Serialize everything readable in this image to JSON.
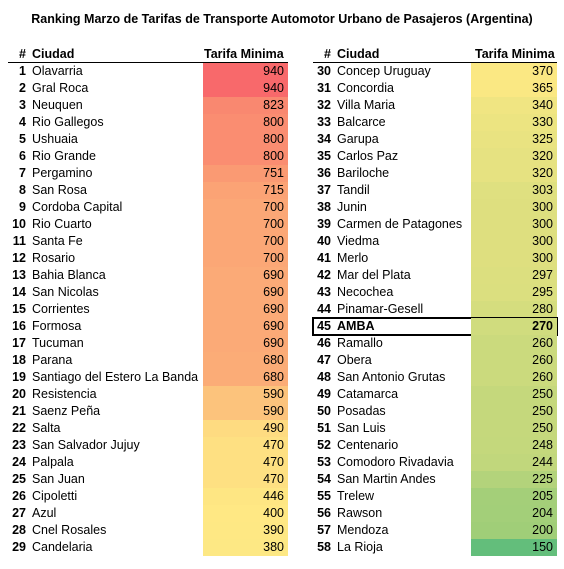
{
  "title": "Ranking Marzo de Tarifas de Transporte Automotor Urbano de Pasajeros (Argentina)",
  "headers": {
    "num": "#",
    "city": "Ciudad",
    "fare": "Tarifa Minima"
  },
  "left_rows": [
    {
      "n": "1",
      "city": "Olavarria",
      "fare": "940",
      "color": "#f8696b"
    },
    {
      "n": "2",
      "city": "Gral Roca",
      "fare": "940",
      "color": "#f8696b"
    },
    {
      "n": "3",
      "city": "Neuquen",
      "fare": "823",
      "color": "#f98870"
    },
    {
      "n": "4",
      "city": "Rio Gallegos",
      "fare": "800",
      "color": "#fa8d71"
    },
    {
      "n": "5",
      "city": "Ushuaia",
      "fare": "800",
      "color": "#fa8d71"
    },
    {
      "n": "6",
      "city": "Rio Grande",
      "fare": "800",
      "color": "#fa8d71"
    },
    {
      "n": "7",
      "city": "Pergamino",
      "fare": "751",
      "color": "#fa9a73"
    },
    {
      "n": "8",
      "city": "San Rosa",
      "fare": "715",
      "color": "#fba375"
    },
    {
      "n": "9",
      "city": "Cordoba Capital",
      "fare": "700",
      "color": "#fba776"
    },
    {
      "n": "10",
      "city": "Rio Cuarto",
      "fare": "700",
      "color": "#fba776"
    },
    {
      "n": "11",
      "city": "Santa Fe",
      "fare": "700",
      "color": "#fba776"
    },
    {
      "n": "12",
      "city": "Rosario",
      "fare": "700",
      "color": "#fba776"
    },
    {
      "n": "13",
      "city": "Bahia Blanca",
      "fare": "690",
      "color": "#fbaa77"
    },
    {
      "n": "14",
      "city": "San Nicolas",
      "fare": "690",
      "color": "#fbaa77"
    },
    {
      "n": "15",
      "city": "Corrientes",
      "fare": "690",
      "color": "#fbaa77"
    },
    {
      "n": "16",
      "city": "Formosa",
      "fare": "690",
      "color": "#fbaa77"
    },
    {
      "n": "17",
      "city": "Tucuman",
      "fare": "690",
      "color": "#fbaa77"
    },
    {
      "n": "18",
      "city": "Parana",
      "fare": "680",
      "color": "#fbac77"
    },
    {
      "n": "19",
      "city": "Santiago del Estero La Banda",
      "fare": "680",
      "color": "#fbac77"
    },
    {
      "n": "20",
      "city": "Resistencia",
      "fare": "590",
      "color": "#fcc37c"
    },
    {
      "n": "21",
      "city": "Saenz Peña",
      "fare": "590",
      "color": "#fcc37c"
    },
    {
      "n": "22",
      "city": "Salta",
      "fare": "490",
      "color": "#fedb81"
    },
    {
      "n": "23",
      "city": "San Salvador Jujuy",
      "fare": "470",
      "color": "#fee082"
    },
    {
      "n": "24",
      "city": "Palpala",
      "fare": "470",
      "color": "#fee082"
    },
    {
      "n": "25",
      "city": "San Juan",
      "fare": "470",
      "color": "#fee082"
    },
    {
      "n": "26",
      "city": "Cipoletti",
      "fare": "446",
      "color": "#fee683"
    },
    {
      "n": "27",
      "city": "Azul",
      "fare": "400",
      "color": "#ffe884"
    },
    {
      "n": "28",
      "city": "Cnel Rosales",
      "fare": "390",
      "color": "#fee884"
    },
    {
      "n": "29",
      "city": "Candelaria",
      "fare": "380",
      "color": "#fde884"
    }
  ],
  "right_rows": [
    {
      "n": "30",
      "city": "Concep Uruguay",
      "fare": "370",
      "color": "#fbe883"
    },
    {
      "n": "31",
      "city": "Concordia",
      "fare": "365",
      "color": "#fae883"
    },
    {
      "n": "32",
      "city": "Villa Maria",
      "fare": "340",
      "color": "#f0e582"
    },
    {
      "n": "33",
      "city": "Balcarce",
      "fare": "330",
      "color": "#ece481"
    },
    {
      "n": "34",
      "city": "Garupa",
      "fare": "325",
      "color": "#e9e381"
    },
    {
      "n": "35",
      "city": "Carlos Paz",
      "fare": "320",
      "color": "#e6e281"
    },
    {
      "n": "36",
      "city": "Bariloche",
      "fare": "320",
      "color": "#e6e281"
    },
    {
      "n": "37",
      "city": "Tandil",
      "fare": "303",
      "color": "#dfe080"
    },
    {
      "n": "38",
      "city": "Junin",
      "fare": "300",
      "color": "#dedf7f"
    },
    {
      "n": "39",
      "city": "Carmen de Patagones",
      "fare": "300",
      "color": "#dedf7f"
    },
    {
      "n": "40",
      "city": "Viedma",
      "fare": "300",
      "color": "#dedf7f"
    },
    {
      "n": "41",
      "city": "Merlo",
      "fare": "300",
      "color": "#dedf7f"
    },
    {
      "n": "42",
      "city": "Mar del Plata",
      "fare": "297",
      "color": "#dcdf7f"
    },
    {
      "n": "43",
      "city": "Necochea",
      "fare": "295",
      "color": "#dbdf7f"
    },
    {
      "n": "44",
      "city": "Pinamar-Gesell",
      "fare": "280",
      "color": "#d5dd7e"
    },
    {
      "n": "45",
      "city": "AMBA",
      "fare": "270",
      "color": "#d0dc7e",
      "highlight": true
    },
    {
      "n": "46",
      "city": "Ramallo",
      "fare": "260",
      "color": "#cbda7d"
    },
    {
      "n": "47",
      "city": "Obera",
      "fare": "260",
      "color": "#cbda7d"
    },
    {
      "n": "48",
      "city": "San Antonio Grutas",
      "fare": "260",
      "color": "#cbda7d"
    },
    {
      "n": "49",
      "city": "Catamarca",
      "fare": "250",
      "color": "#c5d87c"
    },
    {
      "n": "50",
      "city": "Posadas",
      "fare": "250",
      "color": "#c5d87c"
    },
    {
      "n": "51",
      "city": "San Luis",
      "fare": "250",
      "color": "#c5d87c"
    },
    {
      "n": "52",
      "city": "Centenario",
      "fare": "248",
      "color": "#c4d87c"
    },
    {
      "n": "53",
      "city": "Comodoro Rivadavia",
      "fare": "244",
      "color": "#c1d77c"
    },
    {
      "n": "54",
      "city": "San Martin Andes",
      "fare": "225",
      "color": "#b3d37b"
    },
    {
      "n": "55",
      "city": "Trelew",
      "fare": "205",
      "color": "#a4cf79"
    },
    {
      "n": "56",
      "city": "Rawson",
      "fare": "204",
      "color": "#a3cf79"
    },
    {
      "n": "57",
      "city": "Mendoza",
      "fare": "200",
      "color": "#a0ce78"
    },
    {
      "n": "58",
      "city": "La Rioja",
      "fare": "150",
      "color": "#63be7b"
    }
  ]
}
